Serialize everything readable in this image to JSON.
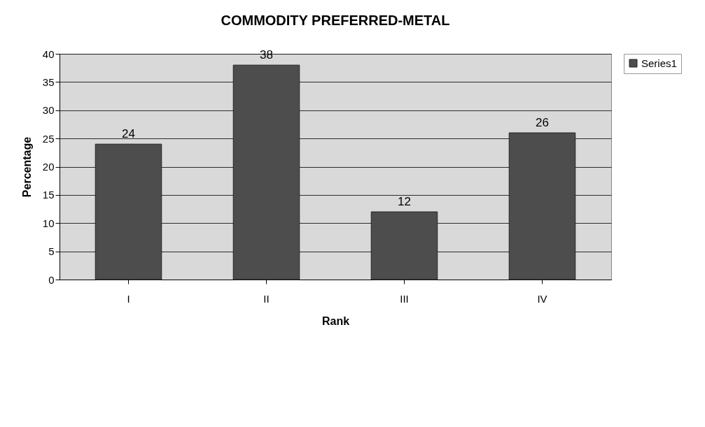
{
  "chart_data": {
    "type": "bar",
    "title": "COMMODITY PREFERRED-METAL",
    "xlabel": "Rank",
    "ylabel": "Percentage",
    "categories": [
      "I",
      "II",
      "III",
      "IV"
    ],
    "series": [
      {
        "name": "Series1",
        "color": "#4d4d4d",
        "values": [
          24,
          38,
          12,
          26
        ]
      }
    ],
    "ylim": [
      0,
      40
    ],
    "yticks": [
      0,
      5,
      10,
      15,
      20,
      25,
      30,
      35,
      40
    ],
    "grid": "y",
    "legend": "right",
    "data_labels": true
  }
}
